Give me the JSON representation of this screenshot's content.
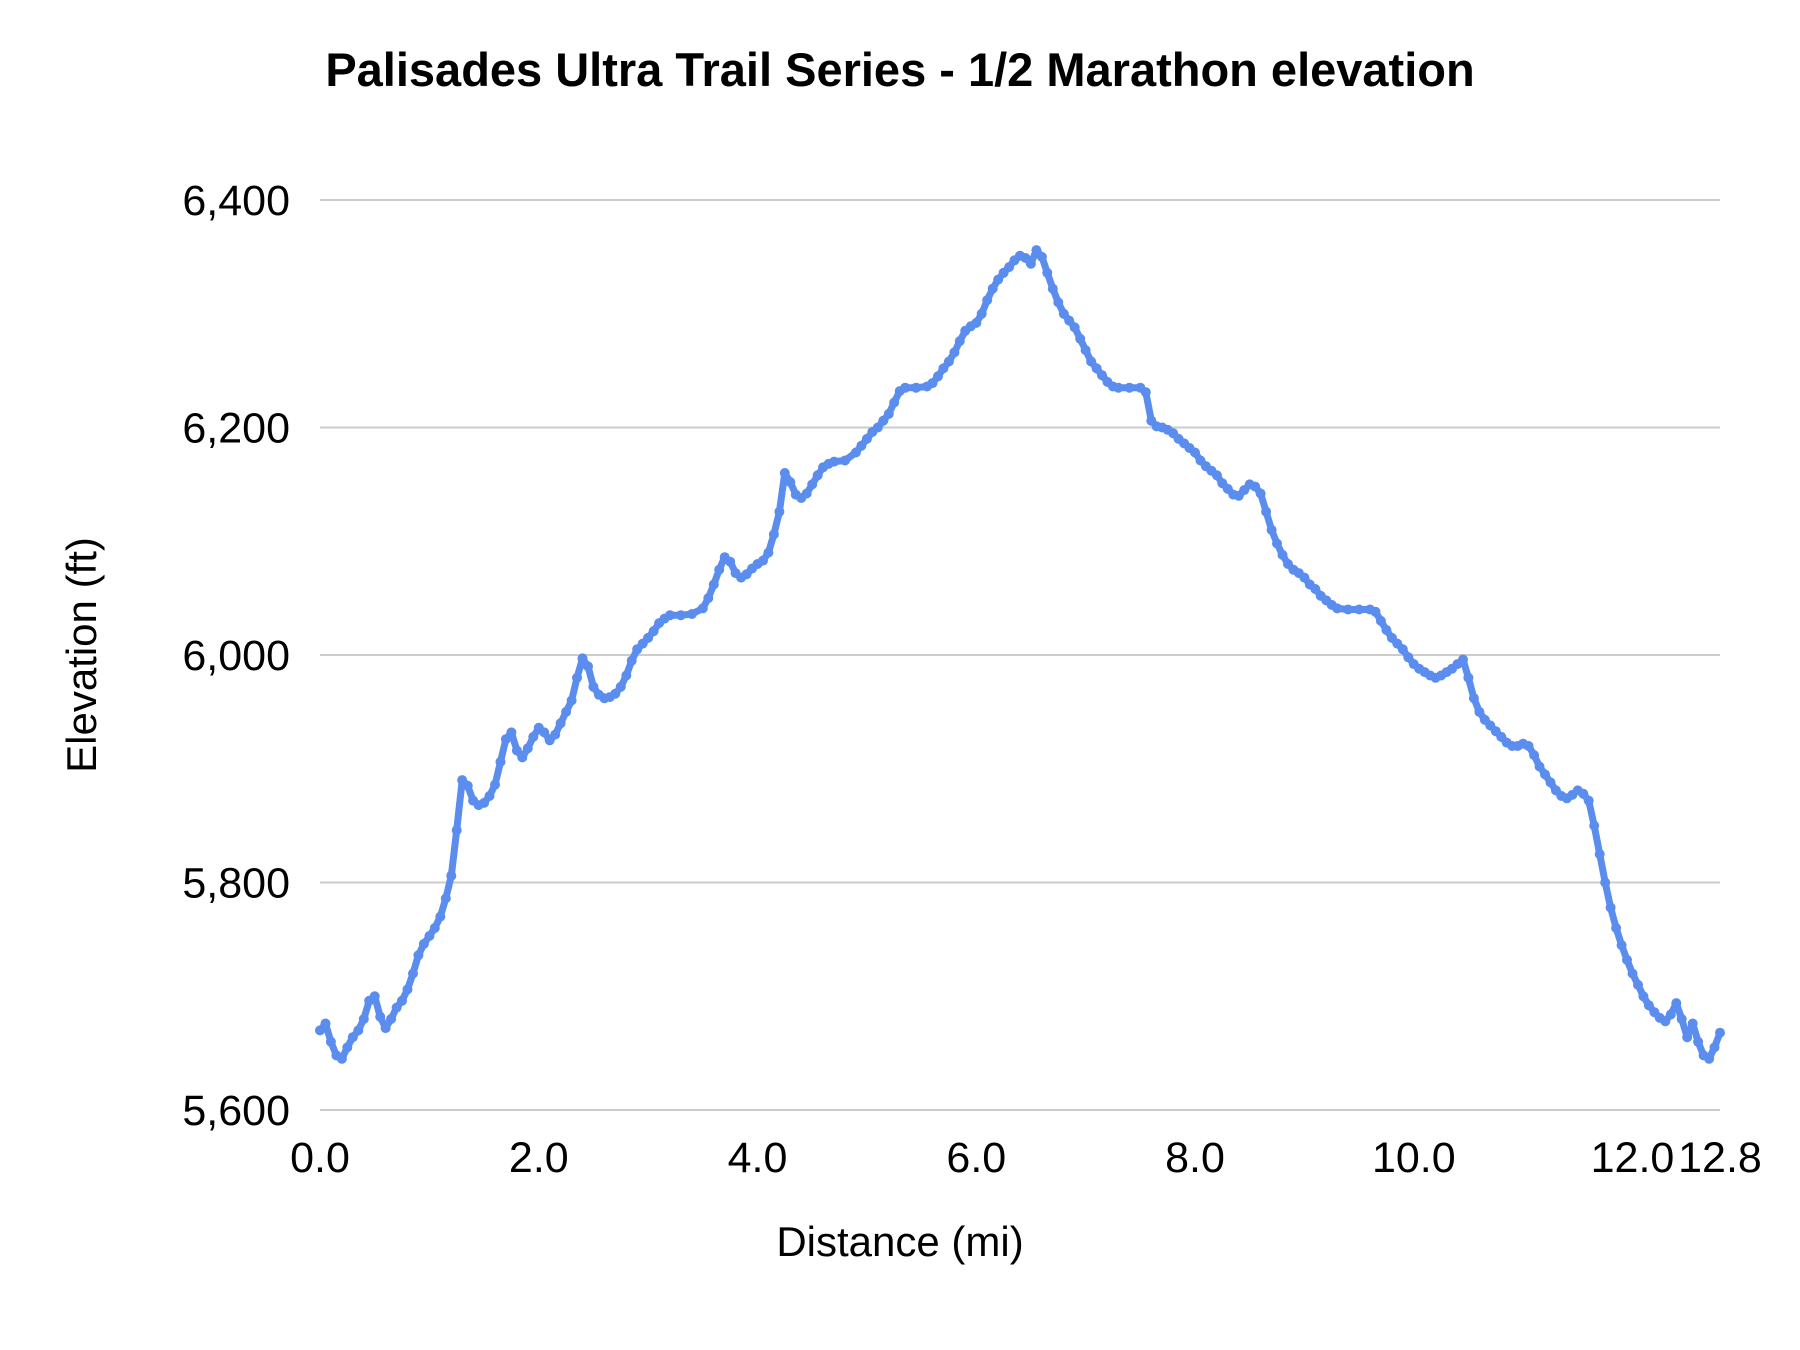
{
  "chart_data": {
    "type": "line",
    "title": "Palisades Ultra Trail Series - 1/2 Marathon elevation",
    "xlabel": "Distance (mi)",
    "ylabel": "Elevation (ft)",
    "xlim": [
      0,
      12.8
    ],
    "ylim": [
      5600,
      6400
    ],
    "grid": "horizontal",
    "legend_position": "none",
    "colors": {
      "line": "#5a8dee",
      "grid": "#cccccc",
      "text": "#000000"
    },
    "xticks": [
      {
        "value": 0.0,
        "label": "0.0"
      },
      {
        "value": 2.0,
        "label": "2.0"
      },
      {
        "value": 4.0,
        "label": "4.0"
      },
      {
        "value": 6.0,
        "label": "6.0"
      },
      {
        "value": 8.0,
        "label": "8.0"
      },
      {
        "value": 10.0,
        "label": "10.0"
      },
      {
        "value": 12.0,
        "label": "12.0"
      },
      {
        "value": 12.8,
        "label": "12.8"
      }
    ],
    "yticks": [
      {
        "value": 5600,
        "label": "5,600"
      },
      {
        "value": 5800,
        "label": "5,800"
      },
      {
        "value": 6000,
        "label": "6,000"
      },
      {
        "value": 6200,
        "label": "6,200"
      },
      {
        "value": 6400,
        "label": "6,400"
      }
    ],
    "series": [
      {
        "name": "Elevation",
        "points": [
          [
            0.0,
            5670
          ],
          [
            0.05,
            5676
          ],
          [
            0.1,
            5660
          ],
          [
            0.15,
            5648
          ],
          [
            0.2,
            5645
          ],
          [
            0.25,
            5655
          ],
          [
            0.3,
            5664
          ],
          [
            0.35,
            5670
          ],
          [
            0.4,
            5680
          ],
          [
            0.45,
            5696
          ],
          [
            0.5,
            5700
          ],
          [
            0.55,
            5682
          ],
          [
            0.6,
            5672
          ],
          [
            0.65,
            5680
          ],
          [
            0.7,
            5690
          ],
          [
            0.75,
            5696
          ],
          [
            0.8,
            5706
          ],
          [
            0.85,
            5720
          ],
          [
            0.9,
            5736
          ],
          [
            0.95,
            5746
          ],
          [
            1.0,
            5753
          ],
          [
            1.05,
            5760
          ],
          [
            1.1,
            5770
          ],
          [
            1.15,
            5786
          ],
          [
            1.2,
            5806
          ],
          [
            1.25,
            5846
          ],
          [
            1.3,
            5890
          ],
          [
            1.35,
            5885
          ],
          [
            1.4,
            5872
          ],
          [
            1.45,
            5868
          ],
          [
            1.5,
            5870
          ],
          [
            1.55,
            5876
          ],
          [
            1.6,
            5886
          ],
          [
            1.65,
            5906
          ],
          [
            1.7,
            5926
          ],
          [
            1.75,
            5932
          ],
          [
            1.8,
            5916
          ],
          [
            1.85,
            5910
          ],
          [
            1.9,
            5918
          ],
          [
            1.95,
            5928
          ],
          [
            2.0,
            5936
          ],
          [
            2.05,
            5932
          ],
          [
            2.1,
            5925
          ],
          [
            2.15,
            5930
          ],
          [
            2.2,
            5940
          ],
          [
            2.25,
            5950
          ],
          [
            2.3,
            5960
          ],
          [
            2.35,
            5980
          ],
          [
            2.4,
            5997
          ],
          [
            2.45,
            5990
          ],
          [
            2.5,
            5972
          ],
          [
            2.55,
            5965
          ],
          [
            2.6,
            5962
          ],
          [
            2.65,
            5963
          ],
          [
            2.7,
            5966
          ],
          [
            2.75,
            5972
          ],
          [
            2.8,
            5982
          ],
          [
            2.85,
            5995
          ],
          [
            2.9,
            6005
          ],
          [
            2.95,
            6010
          ],
          [
            3.0,
            6015
          ],
          [
            3.05,
            6021
          ],
          [
            3.1,
            6028
          ],
          [
            3.15,
            6032
          ],
          [
            3.2,
            6035
          ],
          [
            3.3,
            6035
          ],
          [
            3.4,
            6036
          ],
          [
            3.5,
            6041
          ],
          [
            3.55,
            6050
          ],
          [
            3.6,
            6062
          ],
          [
            3.65,
            6075
          ],
          [
            3.7,
            6086
          ],
          [
            3.75,
            6082
          ],
          [
            3.8,
            6072
          ],
          [
            3.85,
            6068
          ],
          [
            3.9,
            6071
          ],
          [
            3.95,
            6076
          ],
          [
            4.0,
            6080
          ],
          [
            4.05,
            6083
          ],
          [
            4.1,
            6090
          ],
          [
            4.15,
            6106
          ],
          [
            4.2,
            6126
          ],
          [
            4.25,
            6160
          ],
          [
            4.3,
            6152
          ],
          [
            4.35,
            6141
          ],
          [
            4.4,
            6138
          ],
          [
            4.45,
            6142
          ],
          [
            4.5,
            6150
          ],
          [
            4.55,
            6158
          ],
          [
            4.6,
            6165
          ],
          [
            4.65,
            6168
          ],
          [
            4.7,
            6170
          ],
          [
            4.8,
            6171
          ],
          [
            4.9,
            6178
          ],
          [
            4.95,
            6184
          ],
          [
            5.0,
            6190
          ],
          [
            5.05,
            6196
          ],
          [
            5.1,
            6200
          ],
          [
            5.15,
            6206
          ],
          [
            5.2,
            6212
          ],
          [
            5.25,
            6222
          ],
          [
            5.3,
            6232
          ],
          [
            5.35,
            6235
          ],
          [
            5.45,
            6235
          ],
          [
            5.55,
            6236
          ],
          [
            5.6,
            6239
          ],
          [
            5.65,
            6245
          ],
          [
            5.7,
            6252
          ],
          [
            5.75,
            6258
          ],
          [
            5.8,
            6266
          ],
          [
            5.85,
            6276
          ],
          [
            5.9,
            6285
          ],
          [
            5.95,
            6289
          ],
          [
            6.0,
            6292
          ],
          [
            6.05,
            6300
          ],
          [
            6.1,
            6312
          ],
          [
            6.15,
            6322
          ],
          [
            6.2,
            6330
          ],
          [
            6.25,
            6336
          ],
          [
            6.3,
            6341
          ],
          [
            6.35,
            6347
          ],
          [
            6.4,
            6351
          ],
          [
            6.45,
            6349
          ],
          [
            6.5,
            6344
          ],
          [
            6.55,
            6356
          ],
          [
            6.6,
            6350
          ],
          [
            6.65,
            6336
          ],
          [
            6.7,
            6322
          ],
          [
            6.75,
            6310
          ],
          [
            6.8,
            6300
          ],
          [
            6.85,
            6294
          ],
          [
            6.9,
            6288
          ],
          [
            6.95,
            6278
          ],
          [
            7.0,
            6268
          ],
          [
            7.05,
            6258
          ],
          [
            7.1,
            6252
          ],
          [
            7.15,
            6246
          ],
          [
            7.2,
            6240
          ],
          [
            7.25,
            6236
          ],
          [
            7.3,
            6235
          ],
          [
            7.4,
            6235
          ],
          [
            7.5,
            6235
          ],
          [
            7.55,
            6231
          ],
          [
            7.6,
            6206
          ],
          [
            7.65,
            6201
          ],
          [
            7.7,
            6200
          ],
          [
            7.75,
            6198
          ],
          [
            7.8,
            6195
          ],
          [
            7.85,
            6190
          ],
          [
            7.9,
            6186
          ],
          [
            7.95,
            6182
          ],
          [
            8.0,
            6178
          ],
          [
            8.05,
            6171
          ],
          [
            8.1,
            6166
          ],
          [
            8.15,
            6162
          ],
          [
            8.2,
            6158
          ],
          [
            8.25,
            6151
          ],
          [
            8.3,
            6146
          ],
          [
            8.35,
            6141
          ],
          [
            8.4,
            6140
          ],
          [
            8.45,
            6145
          ],
          [
            8.5,
            6150
          ],
          [
            8.55,
            6148
          ],
          [
            8.6,
            6142
          ],
          [
            8.65,
            6126
          ],
          [
            8.7,
            6110
          ],
          [
            8.75,
            6098
          ],
          [
            8.8,
            6088
          ],
          [
            8.85,
            6080
          ],
          [
            8.9,
            6075
          ],
          [
            8.95,
            6072
          ],
          [
            9.0,
            6068
          ],
          [
            9.05,
            6062
          ],
          [
            9.1,
            6058
          ],
          [
            9.15,
            6052
          ],
          [
            9.2,
            6048
          ],
          [
            9.25,
            6044
          ],
          [
            9.3,
            6041
          ],
          [
            9.4,
            6040
          ],
          [
            9.5,
            6040
          ],
          [
            9.6,
            6040
          ],
          [
            9.65,
            6038
          ],
          [
            9.7,
            6030
          ],
          [
            9.75,
            6022
          ],
          [
            9.8,
            6015
          ],
          [
            9.85,
            6010
          ],
          [
            9.9,
            6005
          ],
          [
            9.95,
            5998
          ],
          [
            10.0,
            5992
          ],
          [
            10.05,
            5988
          ],
          [
            10.1,
            5985
          ],
          [
            10.15,
            5982
          ],
          [
            10.2,
            5980
          ],
          [
            10.25,
            5982
          ],
          [
            10.3,
            5985
          ],
          [
            10.35,
            5988
          ],
          [
            10.4,
            5992
          ],
          [
            10.45,
            5996
          ],
          [
            10.5,
            5980
          ],
          [
            10.55,
            5962
          ],
          [
            10.6,
            5950
          ],
          [
            10.65,
            5943
          ],
          [
            10.7,
            5938
          ],
          [
            10.75,
            5933
          ],
          [
            10.8,
            5928
          ],
          [
            10.85,
            5923
          ],
          [
            10.9,
            5920
          ],
          [
            10.95,
            5920
          ],
          [
            11.0,
            5922
          ],
          [
            11.05,
            5920
          ],
          [
            11.1,
            5912
          ],
          [
            11.15,
            5902
          ],
          [
            11.2,
            5895
          ],
          [
            11.25,
            5888
          ],
          [
            11.3,
            5881
          ],
          [
            11.35,
            5876
          ],
          [
            11.4,
            5874
          ],
          [
            11.45,
            5877
          ],
          [
            11.5,
            5881
          ],
          [
            11.55,
            5878
          ],
          [
            11.6,
            5872
          ],
          [
            11.65,
            5850
          ],
          [
            11.7,
            5825
          ],
          [
            11.75,
            5800
          ],
          [
            11.8,
            5778
          ],
          [
            11.85,
            5760
          ],
          [
            11.9,
            5745
          ],
          [
            11.95,
            5732
          ],
          [
            12.0,
            5720
          ],
          [
            12.05,
            5710
          ],
          [
            12.1,
            5700
          ],
          [
            12.15,
            5692
          ],
          [
            12.2,
            5686
          ],
          [
            12.25,
            5681
          ],
          [
            12.3,
            5678
          ],
          [
            12.35,
            5684
          ],
          [
            12.4,
            5694
          ],
          [
            12.45,
            5680
          ],
          [
            12.5,
            5664
          ],
          [
            12.55,
            5676
          ],
          [
            12.6,
            5660
          ],
          [
            12.65,
            5648
          ],
          [
            12.7,
            5645
          ],
          [
            12.75,
            5655
          ],
          [
            12.8,
            5668
          ]
        ]
      }
    ]
  }
}
